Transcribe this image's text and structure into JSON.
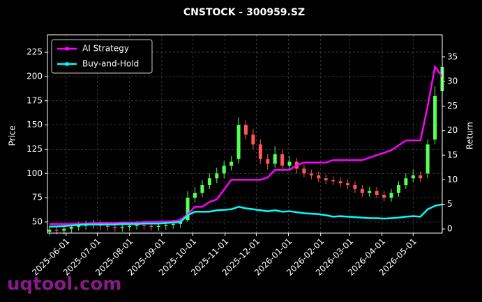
{
  "chart_data": {
    "type": "candlestick",
    "title": "CNSTOCK - 300959.SZ",
    "ylabel": "Price",
    "y2label": "Return",
    "watermark": "uqtool.com",
    "x": [
      "2025-05-16",
      "2025-05-23",
      "2025-05-30",
      "2025-06-06",
      "2025-06-13",
      "2025-06-20",
      "2025-06-27",
      "2025-07-04",
      "2025-07-11",
      "2025-07-18",
      "2025-07-25",
      "2025-08-01",
      "2025-08-08",
      "2025-08-15",
      "2025-08-22",
      "2025-08-29",
      "2025-09-05",
      "2025-09-12",
      "2025-09-19",
      "2025-09-26",
      "2025-10-03",
      "2025-10-10",
      "2025-10-17",
      "2025-10-24",
      "2025-10-31",
      "2025-11-07",
      "2025-11-14",
      "2025-11-21",
      "2025-11-28",
      "2025-12-05",
      "2025-12-12",
      "2025-12-19",
      "2025-12-26",
      "2026-01-02",
      "2026-01-09",
      "2026-01-16",
      "2026-01-23",
      "2026-01-30",
      "2026-02-06",
      "2026-02-13",
      "2026-02-20",
      "2026-02-27",
      "2026-03-06",
      "2026-03-13",
      "2026-03-20",
      "2026-03-27",
      "2026-04-03",
      "2026-04-10",
      "2026-04-17",
      "2026-04-24",
      "2026-05-01",
      "2026-05-08",
      "2026-05-15",
      "2026-05-22",
      "2026-05-29"
    ],
    "open": [
      40,
      42,
      41,
      43,
      45,
      46,
      47,
      48,
      46,
      45,
      44,
      45,
      46,
      47,
      46,
      45,
      46,
      47,
      48,
      52,
      75,
      80,
      88,
      95,
      100,
      108,
      115,
      150,
      140,
      130,
      115,
      110,
      120,
      108,
      112,
      105,
      100,
      98,
      95,
      93,
      92,
      90,
      88,
      84,
      80,
      82,
      78,
      75,
      80,
      88,
      95,
      98,
      100,
      135,
      185
    ],
    "high": [
      46,
      46,
      47,
      49,
      50,
      51,
      52,
      52,
      50,
      49,
      49,
      50,
      51,
      51,
      50,
      50,
      51,
      52,
      54,
      82,
      86,
      93,
      100,
      106,
      113,
      118,
      158,
      155,
      146,
      135,
      120,
      128,
      124,
      118,
      116,
      109,
      104,
      102,
      99,
      97,
      96,
      94,
      92,
      88,
      86,
      86,
      82,
      84,
      92,
      100,
      104,
      102,
      135,
      190,
      220
    ],
    "low": [
      36,
      37,
      37,
      39,
      41,
      42,
      43,
      42,
      41,
      40,
      40,
      41,
      42,
      42,
      41,
      41,
      42,
      43,
      44,
      50,
      70,
      76,
      84,
      90,
      95,
      103,
      110,
      135,
      125,
      110,
      104,
      106,
      103,
      104,
      100,
      96,
      94,
      91,
      89,
      88,
      86,
      84,
      80,
      76,
      76,
      74,
      71,
      71,
      76,
      84,
      91,
      91,
      95,
      130,
      180
    ],
    "close": [
      42,
      41,
      43,
      45,
      46,
      47,
      48,
      46,
      45,
      44,
      45,
      46,
      47,
      46,
      45,
      46,
      47,
      48,
      50,
      75,
      80,
      88,
      95,
      100,
      108,
      112,
      150,
      140,
      130,
      115,
      110,
      120,
      108,
      112,
      105,
      100,
      98,
      95,
      93,
      92,
      90,
      88,
      84,
      80,
      82,
      78,
      75,
      80,
      88,
      95,
      98,
      95,
      130,
      180,
      210
    ],
    "up_color": "#55ff55",
    "down_color": "#ff5555",
    "series": [
      {
        "name": "AI Strategy",
        "color": "#ff00ff",
        "axis": "y2",
        "values": [
          1,
          1,
          1,
          1,
          1.1,
          1.1,
          1.2,
          1.2,
          1.2,
          1.2,
          1.3,
          1.3,
          1.3,
          1.4,
          1.4,
          1.5,
          1.5,
          1.6,
          1.8,
          3,
          4.5,
          4.5,
          5.5,
          6,
          8,
          10,
          10,
          10,
          10,
          10,
          10.5,
          12,
          12,
          12,
          13,
          13.5,
          13.5,
          13.5,
          13.5,
          14,
          14,
          14,
          14,
          14,
          14.5,
          15,
          15.5,
          16,
          17,
          18,
          18,
          18,
          25,
          33,
          31
        ]
      },
      {
        "name": "Buy-and-Hold",
        "color": "#00ffff",
        "axis": "y2",
        "values": [
          0.5,
          0.5,
          0.6,
          0.7,
          0.8,
          0.9,
          0.9,
          0.9,
          0.9,
          0.9,
          1,
          1,
          1,
          1.1,
          1.1,
          1.1,
          1.2,
          1.3,
          1.4,
          2.8,
          3.5,
          3.5,
          3.5,
          3.8,
          3.9,
          4,
          4.5,
          4.2,
          4,
          3.8,
          3.6,
          3.8,
          3.5,
          3.6,
          3.4,
          3.2,
          3.1,
          3,
          2.8,
          2.5,
          2.6,
          2.5,
          2.4,
          2.3,
          2.2,
          2.2,
          2.1,
          2.2,
          2.3,
          2.5,
          2.6,
          2.5,
          4,
          4.7,
          5
        ]
      }
    ],
    "xlim": [
      "2025-05-14",
      "2026-05-29"
    ],
    "xticks": [
      "2025-06-01",
      "2025-07-01",
      "2025-08-01",
      "2025-09-01",
      "2025-10-01",
      "2025-11-01",
      "2025-12-01",
      "2026-01-01",
      "2026-02-01",
      "2026-03-01",
      "2026-04-01",
      "2026-05-01"
    ],
    "ylim": [
      38.5,
      243
    ],
    "yticks": [
      50,
      75,
      100,
      125,
      150,
      175,
      200,
      225
    ],
    "y2lim": [
      -0.85,
      39.5
    ],
    "y2ticks": [
      0,
      5,
      10,
      15,
      20,
      25,
      30,
      35
    ],
    "grid": true,
    "legend": "upper left"
  }
}
